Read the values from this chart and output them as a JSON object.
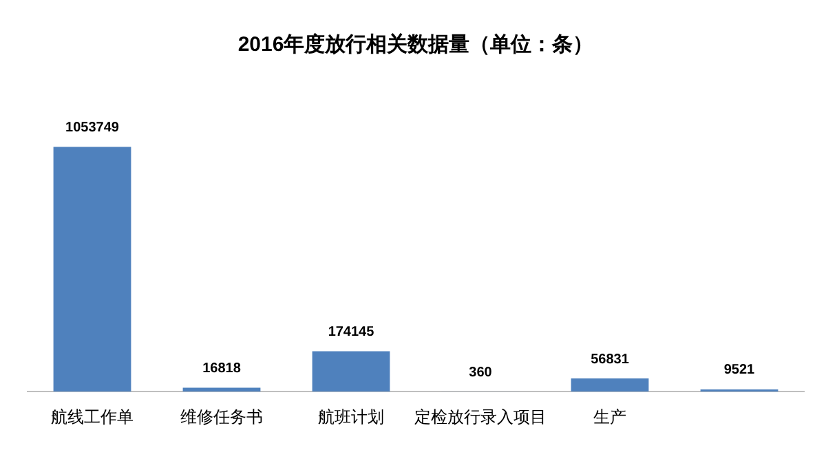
{
  "chart_data": {
    "type": "bar",
    "title": "2016年度放行相关数据量（单位：条）",
    "categories": [
      "航线工作单",
      "维修任务书",
      "航班计划",
      "定检放行录入项目",
      "生产",
      null
    ],
    "values": [
      1053749,
      16818,
      174145,
      360,
      56831,
      9521
    ],
    "color": "#4f81bd",
    "data_labels": true
  }
}
